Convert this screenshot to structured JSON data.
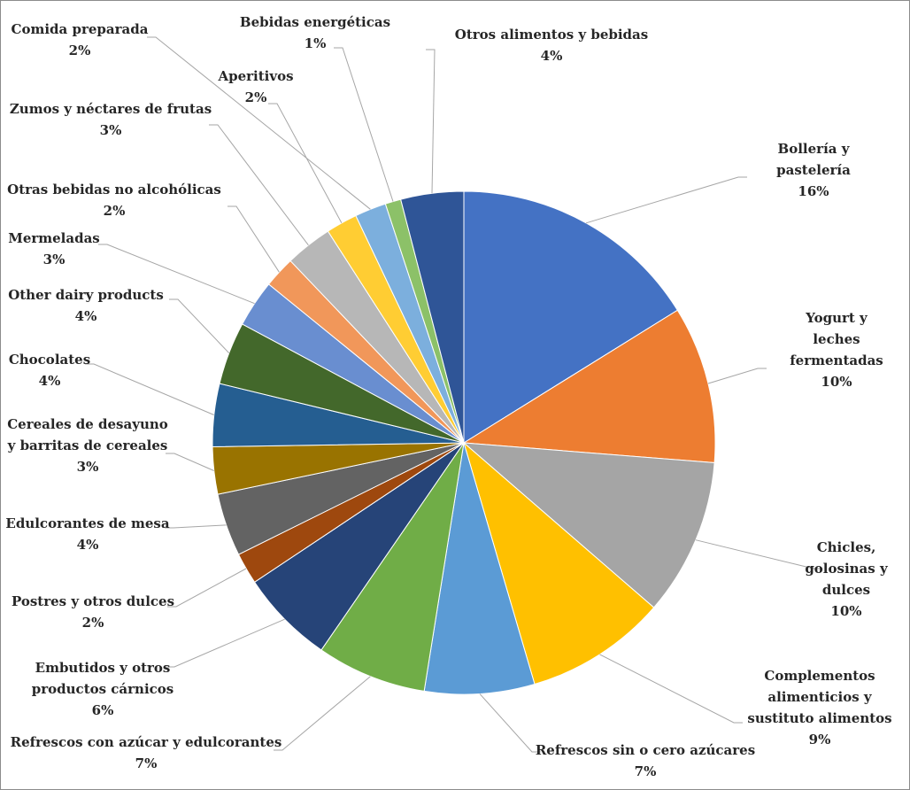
{
  "chart_data": {
    "type": "pie",
    "title": "",
    "start": "12 o'clock, clockwise",
    "slices": [
      {
        "label": "Bollería y pastelería",
        "lines": [
          "Bollería y",
          "pastelería"
        ],
        "value": 16,
        "value_label": "16%",
        "color": "#4472C4"
      },
      {
        "label": "Yogurt y leches fermentadas",
        "lines": [
          "Yogurt y",
          "leches",
          "fermentadas"
        ],
        "value": 10,
        "value_label": "10%",
        "color": "#ED7D31"
      },
      {
        "label": "Chicles, golosinas y dulces",
        "lines": [
          "Chicles,",
          "golosinas y",
          "dulces"
        ],
        "value": 10,
        "value_label": "10%",
        "color": "#A5A5A5"
      },
      {
        "label": "Complementos alimenticios y sustituto alimentos",
        "lines": [
          "Complementos",
          "alimenticios y",
          "sustituto alimentos"
        ],
        "value": 9,
        "value_label": "9%",
        "color": "#FFC000"
      },
      {
        "label": "Refrescos sin o cero azúcares",
        "lines": [
          "Refrescos sin o cero azúcares"
        ],
        "value": 7,
        "value_label": "7%",
        "color": "#5B9BD5"
      },
      {
        "label": "Refrescos con azúcar y edulcorantes",
        "lines": [
          "Refrescos con azúcar y edulcorantes"
        ],
        "value": 7,
        "value_label": "7%",
        "color": "#70AD47"
      },
      {
        "label": "Embutidos y otros productos cárnicos",
        "lines": [
          "Embutidos y otros",
          "productos cárnicos"
        ],
        "value": 6,
        "value_label": "6%",
        "color": "#264478"
      },
      {
        "label": "Postres y otros dulces",
        "lines": [
          "Postres y otros dulces"
        ],
        "value": 2,
        "value_label": "2%",
        "color": "#9E480E"
      },
      {
        "label": "Edulcorantes de mesa",
        "lines": [
          "Edulcorantes de mesa"
        ],
        "value": 4,
        "value_label": "4%",
        "color": "#636363"
      },
      {
        "label": "Cereales de desayuno y barritas de cereales",
        "lines": [
          "Cereales de desayuno",
          "y barritas de cereales"
        ],
        "value": 3,
        "value_label": "3%",
        "color": "#997300"
      },
      {
        "label": "Chocolates",
        "lines": [
          "Chocolates"
        ],
        "value": 4,
        "value_label": "4%",
        "color": "#255E91"
      },
      {
        "label": "Other dairy products",
        "lines": [
          "Other dairy products"
        ],
        "value": 4,
        "value_label": "4%",
        "color": "#43682B"
      },
      {
        "label": "Mermeladas",
        "lines": [
          "Mermeladas"
        ],
        "value": 3,
        "value_label": "3%",
        "color": "#698ED0"
      },
      {
        "label": "Otras bebidas no alcohólicas",
        "lines": [
          "Otras bebidas no alcohólicas"
        ],
        "value": 2,
        "value_label": "2%",
        "color": "#F1975A"
      },
      {
        "label": "Zumos y néctares de frutas",
        "lines": [
          "Zumos y néctares de frutas"
        ],
        "value": 3,
        "value_label": "3%",
        "color": "#B7B7B7"
      },
      {
        "label": "Aperitivos",
        "lines": [
          "Aperitivos"
        ],
        "value": 2,
        "value_label": "2%",
        "color": "#FFCD33"
      },
      {
        "label": "Comida preparada",
        "lines": [
          "Comida preparada"
        ],
        "value": 2,
        "value_label": "2%",
        "color": "#7CAFDD"
      },
      {
        "label": "Bebidas energéticas",
        "lines": [
          "Bebidas energéticas"
        ],
        "value": 1,
        "value_label": "1%",
        "color": "#8CC168"
      },
      {
        "label": "Otros alimentos y bebidas",
        "lines": [
          "Otros alimentos y bebidas"
        ],
        "value": 4,
        "value_label": "4%",
        "color": "#2F5597"
      }
    ]
  }
}
